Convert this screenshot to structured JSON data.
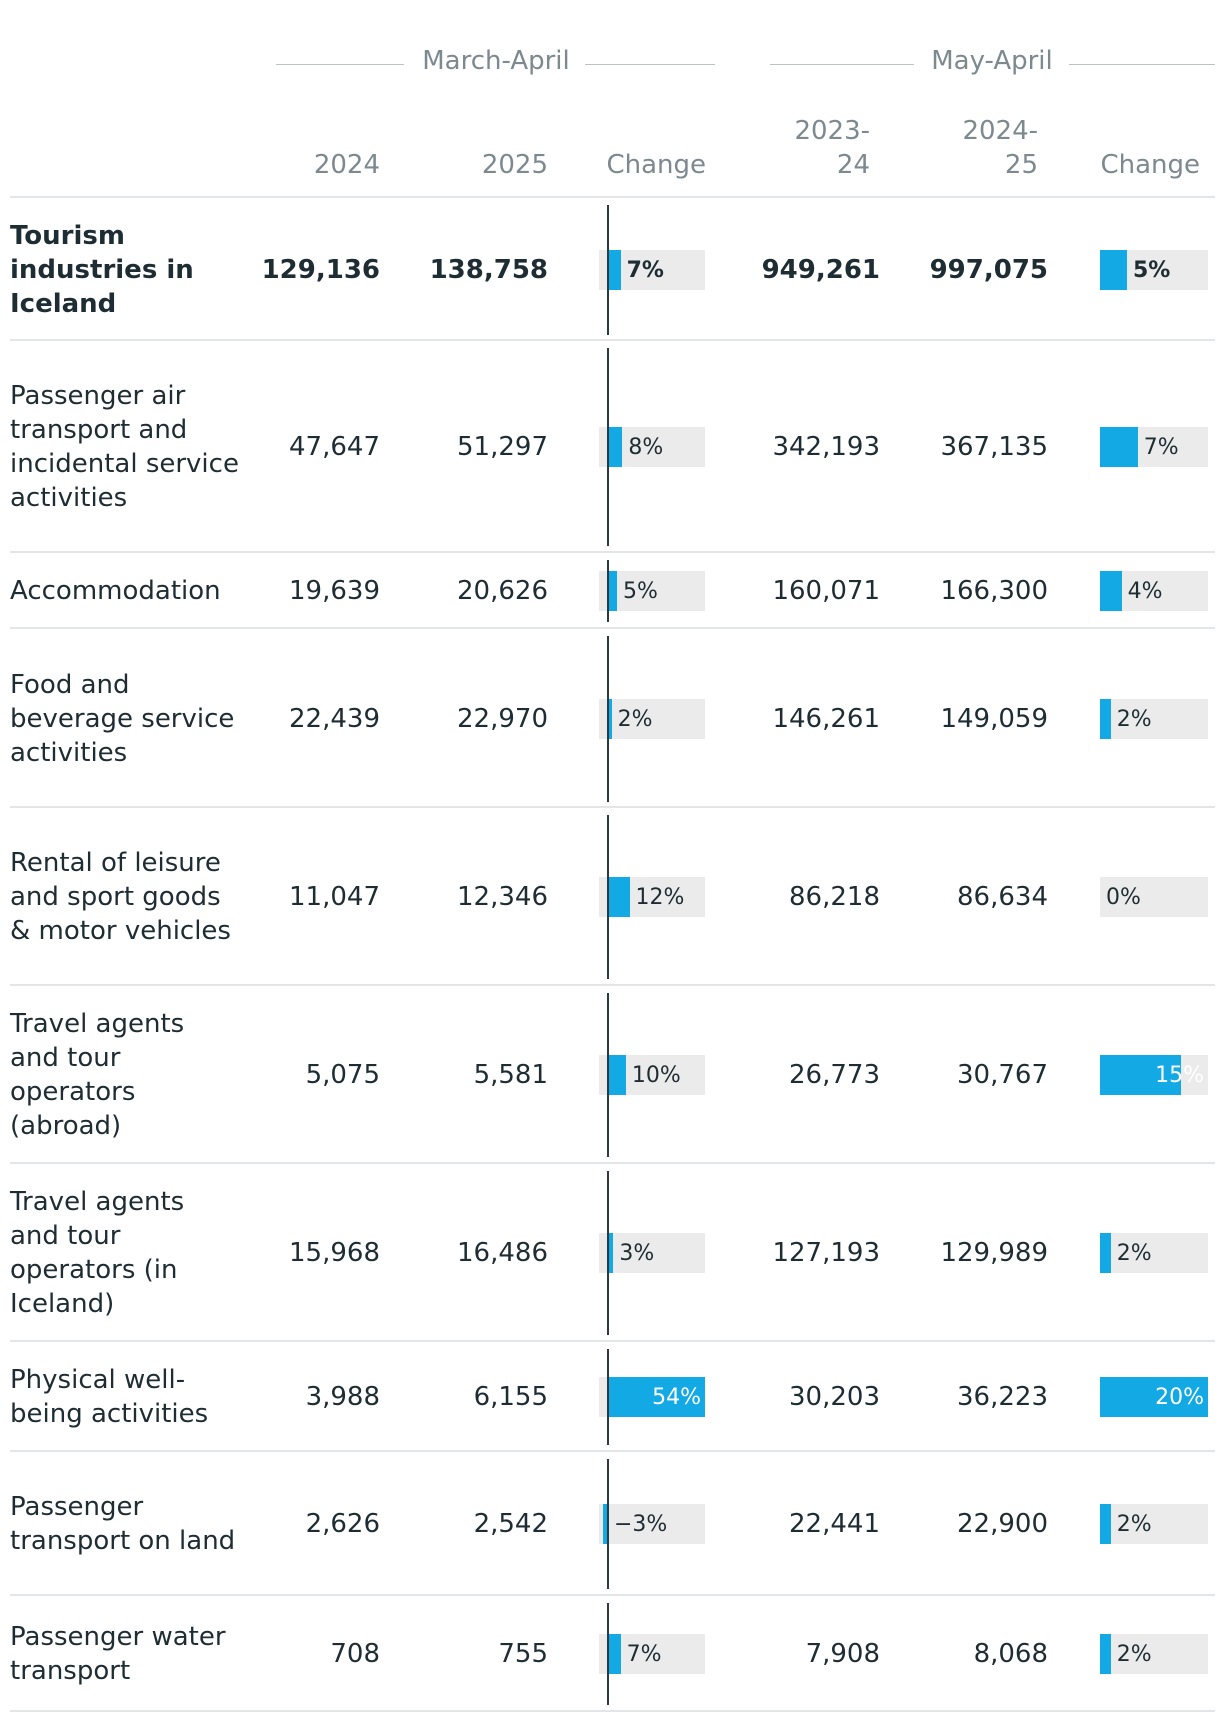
{
  "groups": [
    {
      "label": "March-April"
    },
    {
      "label": "May-April"
    }
  ],
  "columns": {
    "m_prev": "2024",
    "m_curr": "2025",
    "m_change": "Change",
    "y_prev_a": "2023-",
    "y_prev_b": "24",
    "y_curr_a": "2024-",
    "y_curr_b": "25",
    "y_change": "Change"
  },
  "rows": [
    {
      "label": "Tourism industries in Iceland",
      "m_prev": "129,136",
      "m_curr": "138,758",
      "m_change": "7%",
      "m_change_value": 7,
      "y_prev": "949,261",
      "y_curr": "997,075",
      "y_change": "5%",
      "y_change_value": 5,
      "bold": true
    },
    {
      "label": "Passenger air transport and incidental service activities",
      "m_prev": "47,647",
      "m_curr": "51,297",
      "m_change": "8%",
      "m_change_value": 8,
      "y_prev": "342,193",
      "y_curr": "367,135",
      "y_change": "7%",
      "y_change_value": 7
    },
    {
      "label": "Accommodation",
      "m_prev": "19,639",
      "m_curr": "20,626",
      "m_change": "5%",
      "m_change_value": 5,
      "y_prev": "160,071",
      "y_curr": "166,300",
      "y_change": "4%",
      "y_change_value": 4
    },
    {
      "label": "Food and beverage service activities",
      "m_prev": "22,439",
      "m_curr": "22,970",
      "m_change": "2%",
      "m_change_value": 2,
      "y_prev": "146,261",
      "y_curr": "149,059",
      "y_change": "2%",
      "y_change_value": 2
    },
    {
      "label": "Rental of leisure and sport goods & motor vehicles",
      "m_prev": "11,047",
      "m_curr": "12,346",
      "m_change": "12%",
      "m_change_value": 12,
      "y_prev": "86,218",
      "y_curr": "86,634",
      "y_change": "0%",
      "y_change_value": 0
    },
    {
      "label": "Travel agents and tour operators (abroad)",
      "m_prev": "5,075",
      "m_curr": "5,581",
      "m_change": "10%",
      "m_change_value": 10,
      "y_prev": "26,773",
      "y_curr": "30,767",
      "y_change": "15%",
      "y_change_value": 15
    },
    {
      "label": "Travel agents and tour operators (in Iceland)",
      "m_prev": "15,968",
      "m_curr": "16,486",
      "m_change": "3%",
      "m_change_value": 3,
      "y_prev": "127,193",
      "y_curr": "129,989",
      "y_change": "2%",
      "y_change_value": 2
    },
    {
      "label": "Physical well-being activities",
      "m_prev": "3,988",
      "m_curr": "6,155",
      "m_change": "54%",
      "m_change_value": 54,
      "y_prev": "30,203",
      "y_curr": "36,223",
      "y_change": "20%",
      "y_change_value": 20
    },
    {
      "label": "Passenger transport on land",
      "m_prev": "2,626",
      "m_curr": "2,542",
      "m_change": "−3%",
      "m_change_value": -3,
      "y_prev": "22,441",
      "y_curr": "22,900",
      "y_change": "2%",
      "y_change_value": 2
    },
    {
      "label": "Passenger water transport",
      "m_prev": "708",
      "m_curr": "755",
      "m_change": "7%",
      "m_change_value": 7,
      "y_prev": "7,908",
      "y_curr": "8,068",
      "y_change": "2%",
      "y_change_value": 2
    }
  ],
  "colors": {
    "bar": "#12a9e5",
    "track": "#ebebeb",
    "axis": "#2b3940",
    "rule": "#e3e6e8",
    "muted": "#7c8a90",
    "text": "#1e2d33"
  },
  "chart_data": {
    "type": "table",
    "title": "",
    "column_groups": [
      "March-April",
      "May-April"
    ],
    "columns": [
      "2024",
      "2025",
      "Change",
      "2023-24",
      "2024-25",
      "Change"
    ],
    "categories": [
      "Tourism industries in Iceland",
      "Passenger air transport and incidental service activities",
      "Accommodation",
      "Food and beverage service activities",
      "Rental of leisure and sport goods & motor vehicles",
      "Travel agents and tour operators (abroad)",
      "Travel agents and tour operators (in Iceland)",
      "Physical well-being activities",
      "Passenger transport on land",
      "Passenger water transport"
    ],
    "series": [
      {
        "name": "March-April 2024",
        "values": [
          129136,
          47647,
          19639,
          22439,
          11047,
          5075,
          15968,
          3988,
          2626,
          708
        ]
      },
      {
        "name": "March-April 2025",
        "values": [
          138758,
          51297,
          20626,
          22970,
          12346,
          5581,
          16486,
          6155,
          2542,
          755
        ]
      },
      {
        "name": "March-April Change (%)",
        "values": [
          7,
          8,
          5,
          2,
          12,
          10,
          3,
          54,
          -3,
          7
        ]
      },
      {
        "name": "May-April 2023-24",
        "values": [
          949261,
          342193,
          160071,
          146261,
          86218,
          26773,
          127193,
          30203,
          22441,
          7908
        ]
      },
      {
        "name": "May-April 2024-25",
        "values": [
          997075,
          367135,
          166300,
          149059,
          86634,
          30767,
          129989,
          36223,
          22900,
          8068
        ]
      },
      {
        "name": "May-April Change (%)",
        "values": [
          5,
          7,
          4,
          2,
          0,
          15,
          2,
          20,
          2,
          2
        ]
      }
    ],
    "m_change_range": [
      -5,
      54
    ],
    "y_change_range": [
      0,
      20
    ]
  }
}
